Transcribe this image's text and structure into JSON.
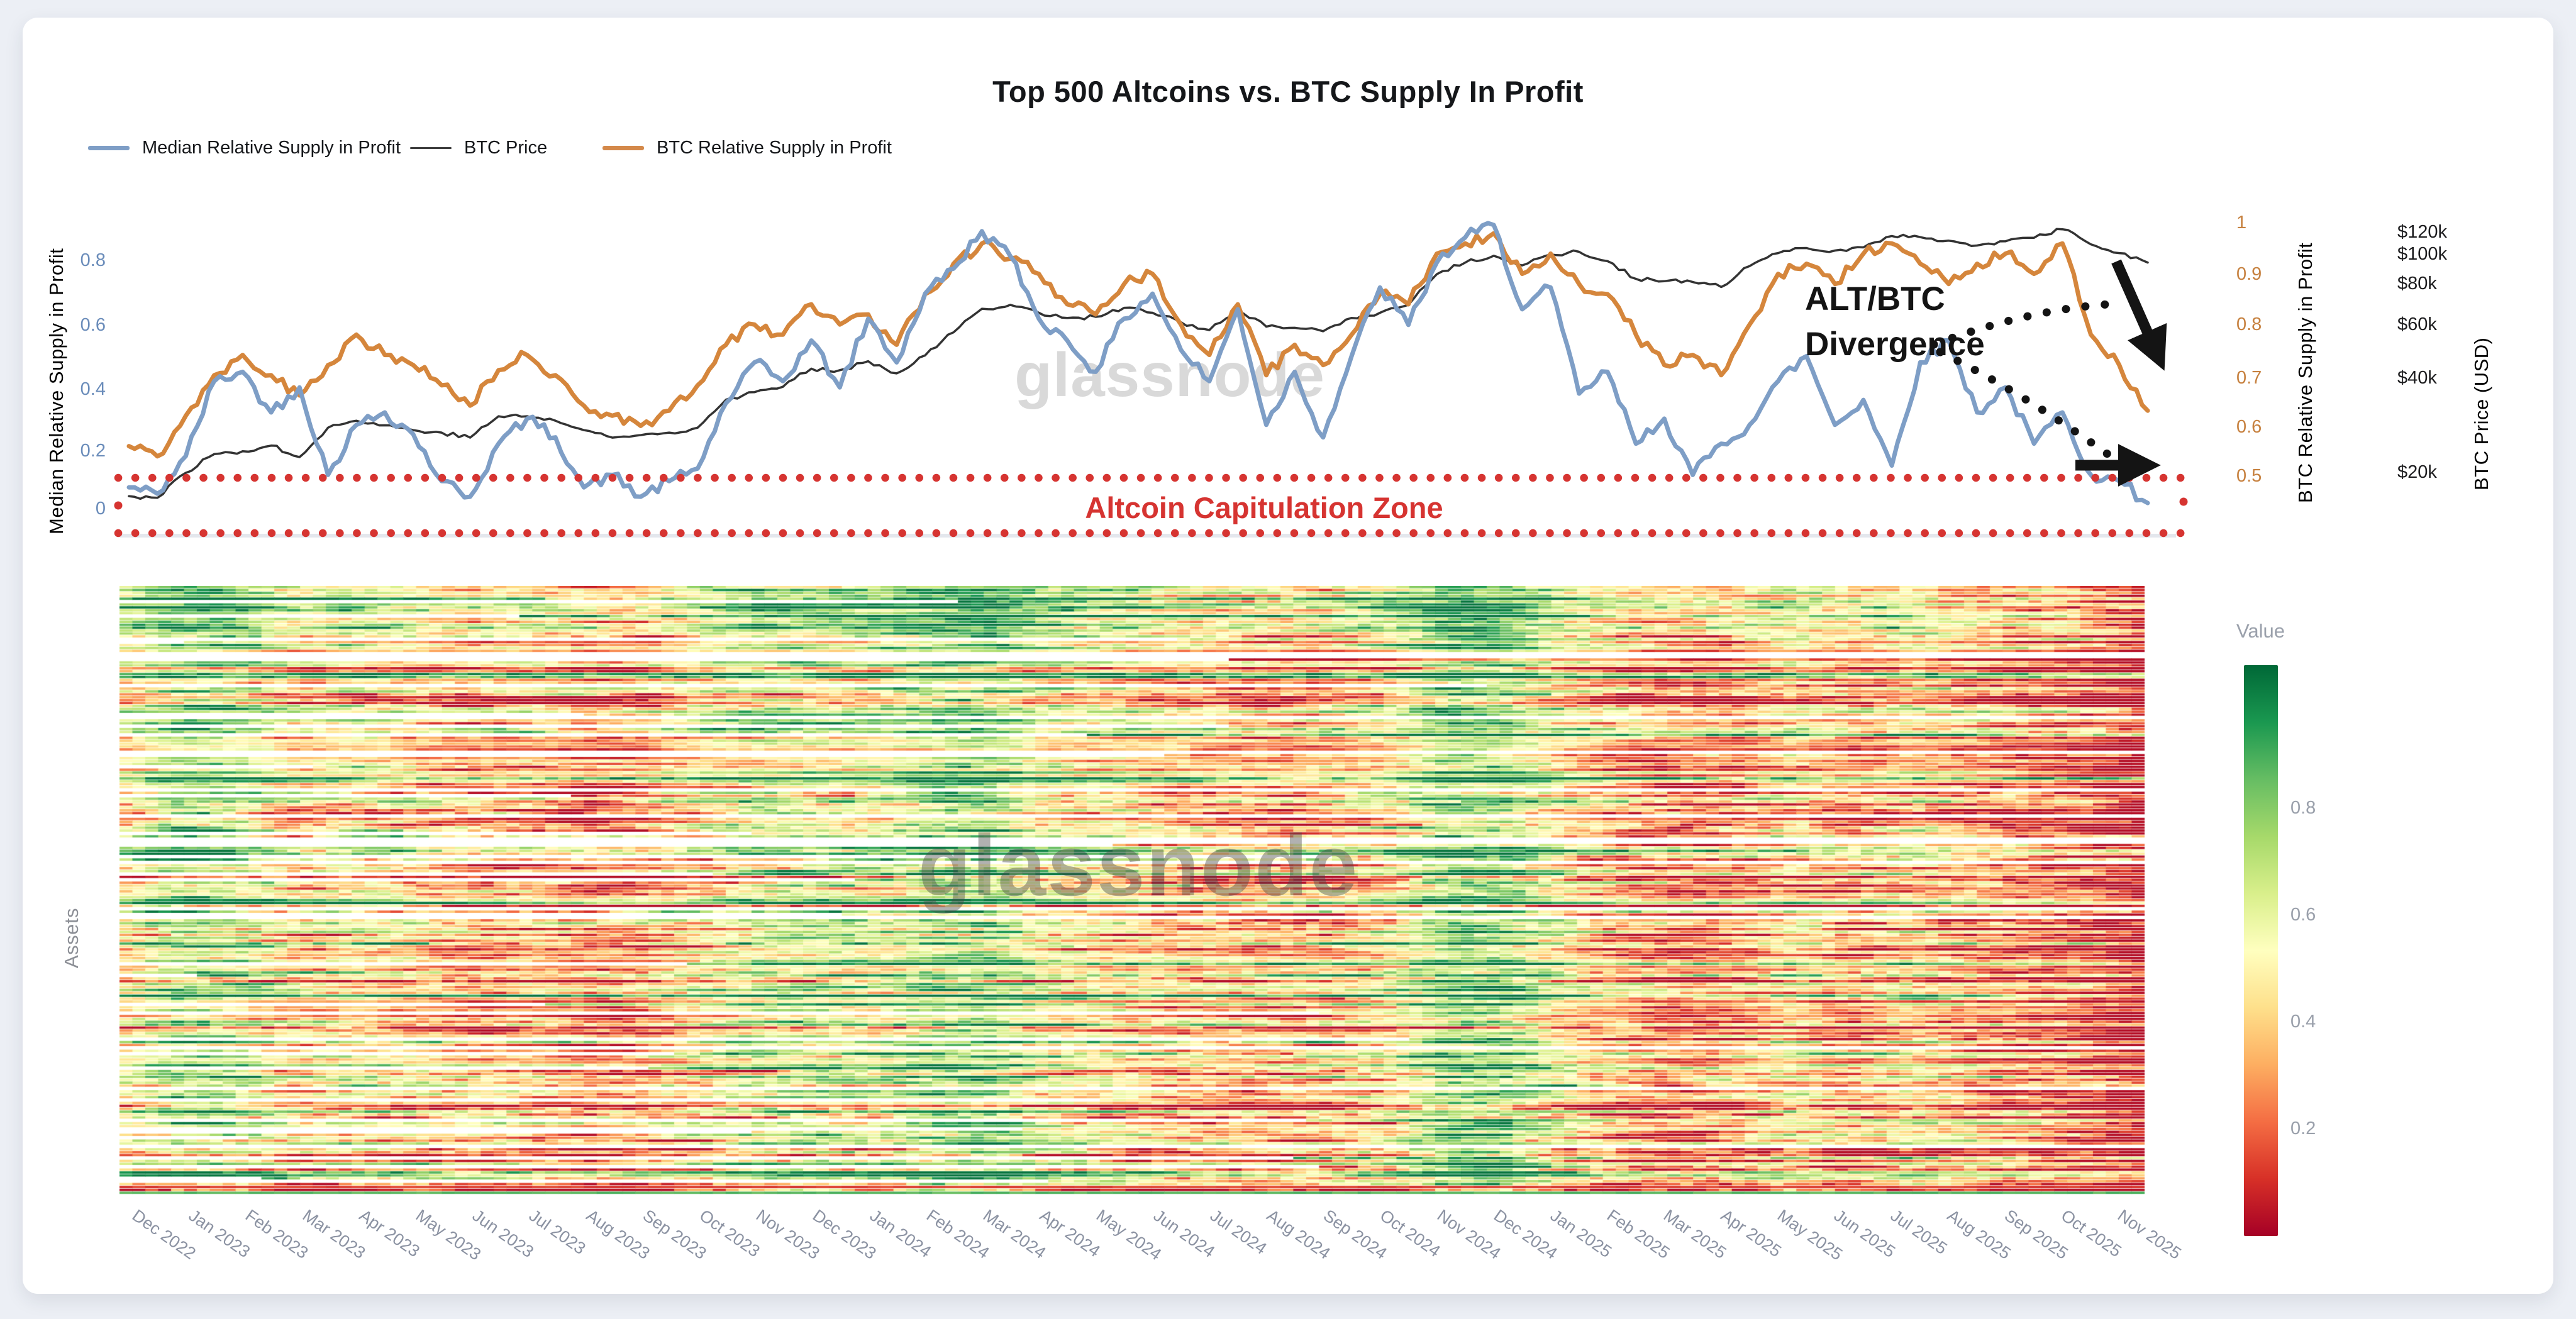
{
  "title": "Top 500 Altcoins vs. BTC Supply In Profit",
  "watermarks": {
    "line_chart": "glassnode",
    "heatmap": "glassnode"
  },
  "legend": {
    "items": [
      {
        "label": "Median Relative Supply in Profit",
        "color": "#7e9ec6",
        "thickness": 7
      },
      {
        "label": "BTC Price",
        "color": "#3d3d3d",
        "thickness": 3
      },
      {
        "label": "BTC Relative Supply in Profit",
        "color": "#d4894a",
        "thickness": 7
      }
    ]
  },
  "axes": {
    "left": {
      "title": "Median Relative Supply in Profit",
      "color": "#6a8cba",
      "ticks": [
        "0.8",
        "0.6",
        "0.4",
        "0.2",
        "0"
      ]
    },
    "btc_supply": {
      "title": "BTC Relative Supply in Profit",
      "color": "#c6803e",
      "ticks": [
        "1",
        "0.9",
        "0.8",
        "0.7",
        "0.6",
        "0.5"
      ]
    },
    "btc_price": {
      "title": "BTC Price (USD)",
      "color": "#1d1d1f",
      "ticks": [
        "$120k",
        "$100k",
        "$80k",
        "$60k",
        "$40k",
        "$20k"
      ]
    },
    "heatmap_y_title": "Assets",
    "x_dates": [
      "Dec 2022",
      "Jan 2023",
      "Feb 2023",
      "Mar 2023",
      "Apr 2023",
      "May 2023",
      "Jun 2023",
      "Jul 2023",
      "Aug 2023",
      "Sep 2023",
      "Oct 2023",
      "Nov 2023",
      "Dec 2023",
      "Jan 2024",
      "Feb 2024",
      "Mar 2024",
      "Apr 2024",
      "May 2024",
      "Jun 2024",
      "Jul 2024",
      "Aug 2024",
      "Sep 2024",
      "Oct 2024",
      "Nov 2024",
      "Dec 2024",
      "Jan 2025",
      "Feb 2025",
      "Mar 2025",
      "Apr 2025",
      "May 2025",
      "Jun 2025",
      "Jul 2025",
      "Aug 2025",
      "Sep 2025",
      "Oct 2025",
      "Nov 2025"
    ]
  },
  "annotations": {
    "divergence_line1": "ALT/BTC",
    "divergence_line2": "Divergence",
    "capitulation_label": "Altcoin Capitulation Zone",
    "capitulation_color": "#d63431",
    "arrow_color": "#141414"
  },
  "colorbar": {
    "title": "Value",
    "ticks": [
      "0.8",
      "0.6",
      "0.4",
      "0.2"
    ],
    "gradient_stops": [
      "#006837",
      "#1a9850",
      "#66bd63",
      "#a6d96a",
      "#d9ef8b",
      "#ffffbf",
      "#fee08b",
      "#fdae61",
      "#f46d43",
      "#d73027",
      "#a50026"
    ]
  },
  "chart_data": [
    {
      "type": "line",
      "title": "Top 500 Altcoins vs. BTC Supply In Profit",
      "x_range": [
        "Dec 2022",
        "Nov 2025"
      ],
      "x_spacing": "two samples per month, evenly spaced",
      "legend_position": "top-left",
      "grid": false,
      "series": [
        {
          "name": "Median Relative Supply in Profit",
          "axis": "left",
          "ylim": [
            0,
            1
          ],
          "color": "#7e9ec6",
          "values": [
            0.08,
            0.06,
            0.18,
            0.42,
            0.45,
            0.32,
            0.4,
            0.12,
            0.28,
            0.32,
            0.25,
            0.1,
            0.05,
            0.22,
            0.3,
            0.24,
            0.08,
            0.12,
            0.05,
            0.1,
            0.14,
            0.35,
            0.48,
            0.42,
            0.55,
            0.4,
            0.62,
            0.48,
            0.7,
            0.78,
            0.9,
            0.82,
            0.62,
            0.55,
            0.45,
            0.62,
            0.7,
            0.52,
            0.42,
            0.65,
            0.28,
            0.45,
            0.24,
            0.5,
            0.72,
            0.6,
            0.8,
            0.88,
            0.92,
            0.65,
            0.72,
            0.38,
            0.45,
            0.22,
            0.3,
            0.12,
            0.22,
            0.28,
            0.42,
            0.5,
            0.28,
            0.36,
            0.15,
            0.48,
            0.55,
            0.32,
            0.4,
            0.22,
            0.32,
            0.12,
            0.1,
            0.03
          ]
        },
        {
          "name": "BTC Price",
          "axis": "right-log-usd",
          "units": "thousand USD",
          "ylim_k": [
            16,
            126
          ],
          "color": "#333333",
          "values_k": [
            16.8,
            16.6,
            20,
            23,
            23.5,
            24.5,
            22.5,
            28,
            29.5,
            28.5,
            27.5,
            27,
            26,
            30.5,
            30.5,
            29.5,
            27.5,
            26,
            26.5,
            27,
            28,
            34.5,
            36.5,
            38,
            43.5,
            43,
            46,
            42,
            48,
            57,
            68,
            70,
            66,
            63.5,
            64,
            68.5,
            66,
            61.5,
            58,
            66.5,
            59.5,
            59,
            57.5,
            63.5,
            66,
            70,
            88,
            96,
            101,
            94,
            102,
            104,
            97,
            85,
            83.5,
            83,
            80,
            93.5,
            103,
            107,
            105,
            107.5,
            117,
            116,
            113,
            109,
            112.5,
            115.5,
            123,
            110,
            103,
            96
          ]
        },
        {
          "name": "BTC Relative Supply in Profit",
          "axis": "right-orange",
          "ylim": [
            0.5,
            1
          ],
          "color": "#d5863c",
          "values": [
            0.56,
            0.54,
            0.62,
            0.7,
            0.74,
            0.7,
            0.66,
            0.72,
            0.78,
            0.74,
            0.72,
            0.68,
            0.64,
            0.71,
            0.74,
            0.7,
            0.64,
            0.62,
            0.6,
            0.63,
            0.68,
            0.76,
            0.8,
            0.78,
            0.84,
            0.8,
            0.82,
            0.76,
            0.86,
            0.92,
            0.96,
            0.93,
            0.9,
            0.84,
            0.82,
            0.88,
            0.9,
            0.8,
            0.74,
            0.84,
            0.7,
            0.76,
            0.72,
            0.78,
            0.86,
            0.84,
            0.94,
            0.96,
            0.98,
            0.9,
            0.94,
            0.88,
            0.86,
            0.78,
            0.72,
            0.74,
            0.7,
            0.8,
            0.9,
            0.92,
            0.88,
            0.94,
            0.96,
            0.92,
            0.88,
            0.92,
            0.94,
            0.9,
            0.96,
            0.78,
            0.72,
            0.63
          ]
        }
      ],
      "zone": {
        "label": "Altcoin Capitulation Zone",
        "applies_to": "Median Relative Supply in Profit",
        "y_range": [
          0.0,
          0.17
        ],
        "style": "red dotted rectangle"
      }
    },
    {
      "type": "heatmap",
      "ylabel": "Assets",
      "rows_depicted": "Top 500 altcoins, one unlabeled row per asset; some rows begin after listing date (blank before)",
      "x_range": [
        "Dec 2022",
        "Nov 2025"
      ],
      "value_label": "Value",
      "value_range": [
        0,
        1
      ],
      "colormap": "RdYlGn (1 = dark green / in profit, 0 = dark red / in loss)",
      "monthly_mean_tone": [
        0.45,
        0.6,
        0.55,
        0.42,
        0.46,
        0.42,
        0.35,
        0.38,
        0.3,
        0.33,
        0.45,
        0.52,
        0.52,
        0.5,
        0.6,
        0.62,
        0.48,
        0.45,
        0.4,
        0.38,
        0.35,
        0.38,
        0.45,
        0.62,
        0.6,
        0.45,
        0.36,
        0.3,
        0.33,
        0.42,
        0.32,
        0.42,
        0.35,
        0.3,
        0.26,
        0.15
      ],
      "generation": {
        "seed": 1337,
        "rows": 210,
        "cols": 157
      }
    }
  ]
}
